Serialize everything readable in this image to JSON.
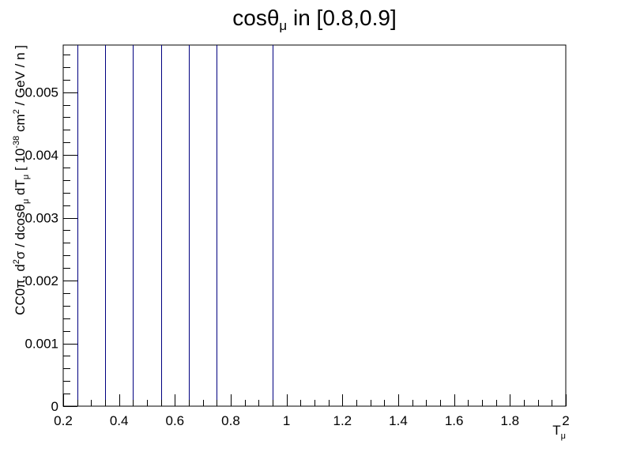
{
  "chart_data": {
    "type": "histogram",
    "title": {
      "base": "cosθ",
      "sub": "μ",
      "rest": " in [0.8,0.9]"
    },
    "xlabel": {
      "base": "T",
      "sub": "μ"
    },
    "ylabel": {
      "part1": "CC0π, d",
      "sup1": "2",
      "part2": "σ / dcosθ",
      "sub1": "μ",
      "part3": " dT",
      "sub2": "μ",
      "part4": " [ 10",
      "sup2": "-38",
      "part5": " cm",
      "sup3": "2",
      "part6": " / GeV / n ]"
    },
    "xlim": [
      0.2,
      2.0
    ],
    "ylim": [
      0,
      0.00575
    ],
    "x_ticks": [
      {
        "v": 0.2,
        "label": "0.2"
      },
      {
        "v": 0.4,
        "label": "0.4"
      },
      {
        "v": 0.6,
        "label": "0.6"
      },
      {
        "v": 0.8,
        "label": "0.8"
      },
      {
        "v": 1.0,
        "label": "1"
      },
      {
        "v": 1.2,
        "label": "1.2"
      },
      {
        "v": 1.4,
        "label": "1.4"
      },
      {
        "v": 1.6,
        "label": "1.6"
      },
      {
        "v": 1.8,
        "label": "1.8"
      },
      {
        "v": 2.0,
        "label": "2"
      }
    ],
    "y_ticks": [
      {
        "v": 0,
        "label": "0"
      },
      {
        "v": 0.001,
        "label": "0.001"
      },
      {
        "v": 0.002,
        "label": "0.002"
      },
      {
        "v": 0.003,
        "label": "0.003"
      },
      {
        "v": 0.004,
        "label": "0.004"
      },
      {
        "v": 0.005,
        "label": "0.005"
      }
    ],
    "bin_edges": [
      0.25,
      0.35,
      0.45,
      0.55,
      0.65,
      0.75,
      0.95
    ],
    "line_color": "#000080",
    "grid": false,
    "legend": "none"
  }
}
